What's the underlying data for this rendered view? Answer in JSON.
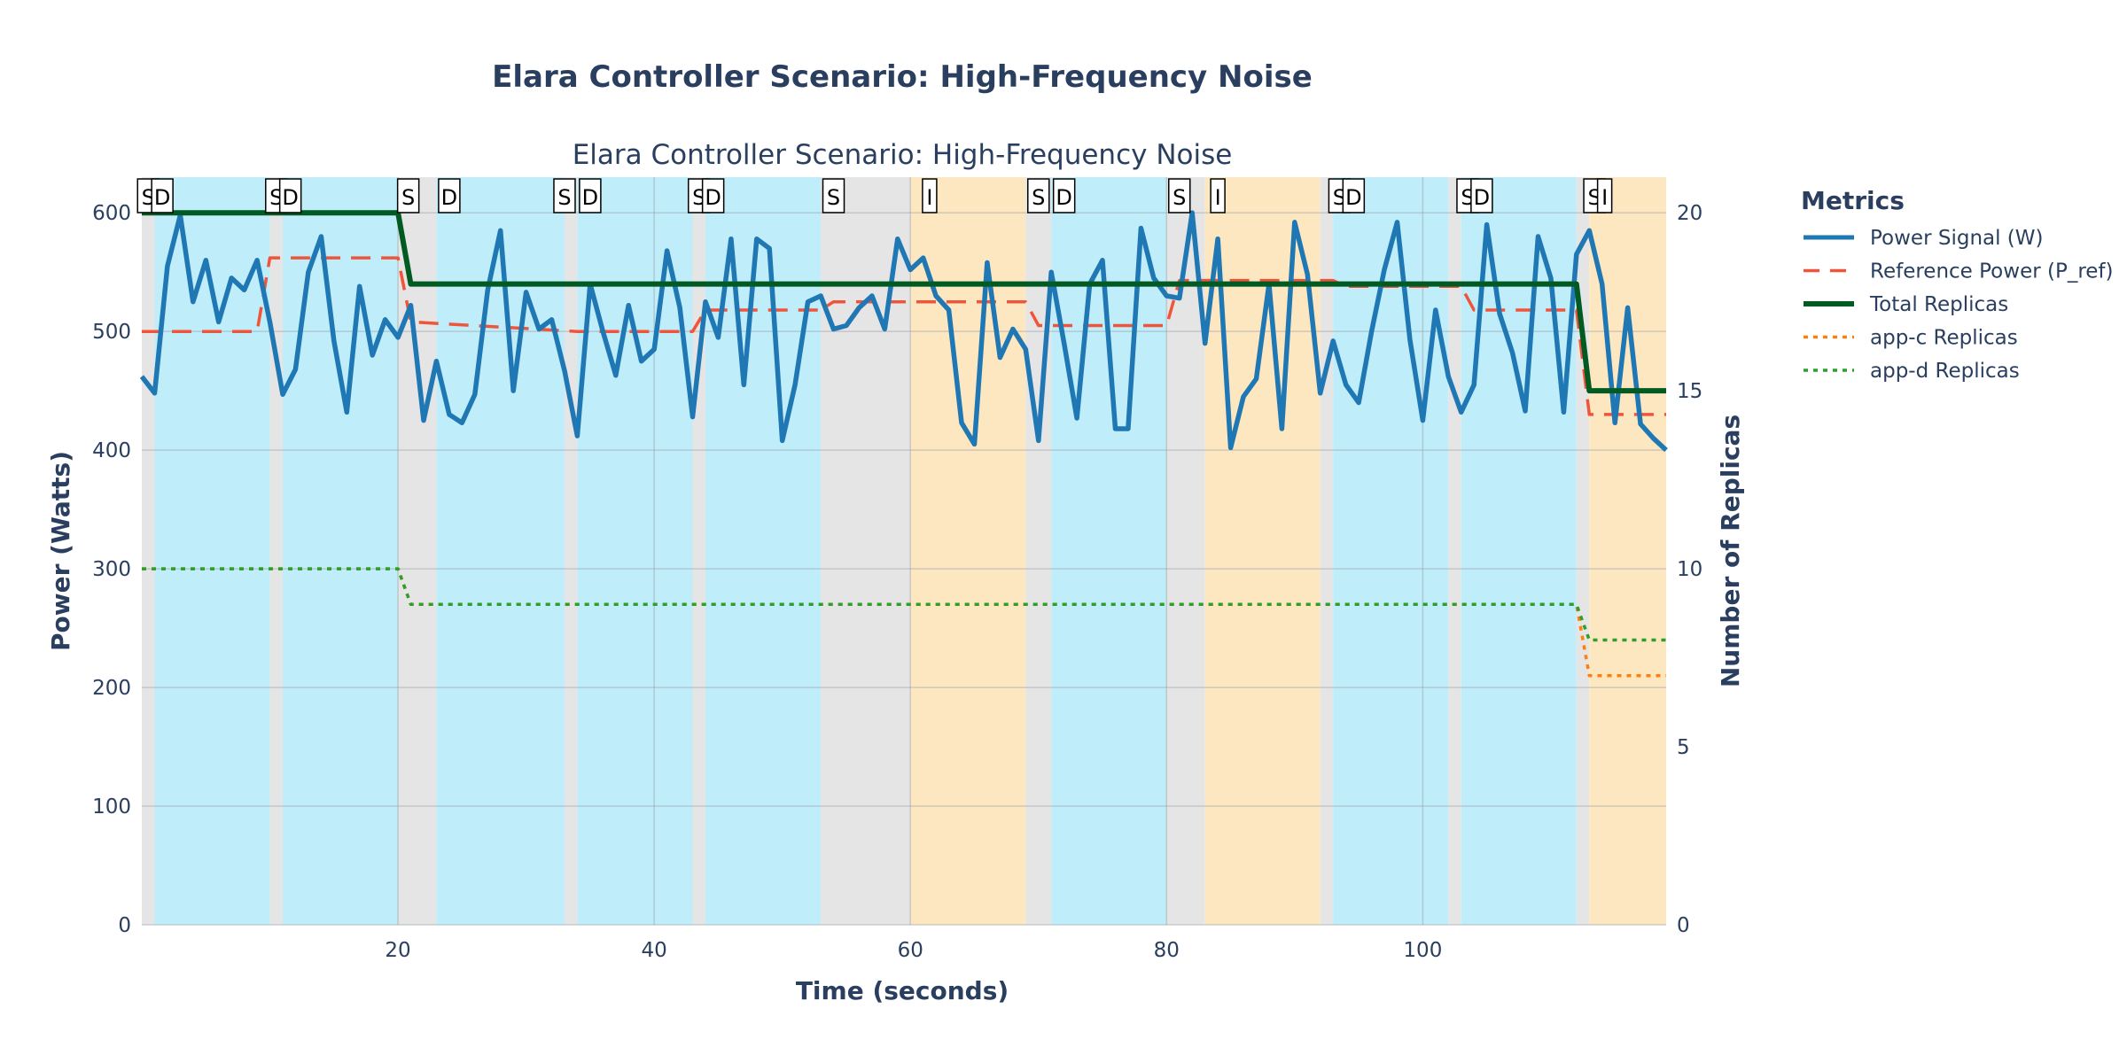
{
  "chart_data": {
    "type": "line",
    "title": "Elara Controller Scenario: High-Frequency Noise",
    "subtitle": "Elara Controller Scenario: High-Frequency Noise",
    "xlabel": "Time (seconds)",
    "ylabel": "Power (Watts)",
    "y2label": "Number of Replicas",
    "xlim": [
      0,
      119
    ],
    "ylim": [
      0,
      630
    ],
    "y2lim": [
      0,
      21
    ],
    "xticks": [
      20,
      40,
      60,
      80,
      100
    ],
    "yticks": [
      0,
      100,
      200,
      300,
      400,
      500,
      600
    ],
    "y2ticks": [
      0,
      5,
      10,
      15,
      20
    ],
    "grid": true,
    "legend": {
      "title": "Metrics",
      "placement": "right"
    },
    "series": [
      {
        "name": "Power Signal (W)",
        "axis": "y",
        "color": "#1f77b4",
        "style": "solid",
        "x": [
          0,
          1,
          2,
          3,
          4,
          5,
          6,
          7,
          8,
          9,
          10,
          11,
          12,
          13,
          14,
          15,
          16,
          17,
          18,
          19,
          20,
          21,
          22,
          23,
          24,
          25,
          26,
          27,
          28,
          29,
          30,
          31,
          32,
          33,
          34,
          35,
          36,
          37,
          38,
          39,
          40,
          41,
          42,
          43,
          44,
          45,
          46,
          47,
          48,
          49,
          50,
          51,
          52,
          53,
          54,
          55,
          56,
          57,
          58,
          59,
          60,
          61,
          62,
          63,
          64,
          65,
          66,
          67,
          68,
          69,
          70,
          71,
          72,
          73,
          74,
          75,
          76,
          77,
          78,
          79,
          80,
          81,
          82,
          83,
          84,
          85,
          86,
          87,
          88,
          89,
          90,
          91,
          92,
          93,
          94,
          95,
          96,
          97,
          98,
          99,
          100,
          101,
          102,
          103,
          104,
          105,
          106,
          107,
          108,
          109,
          110,
          111,
          112,
          113,
          114,
          115,
          116,
          117,
          118,
          119
        ],
        "values": [
          462,
          448,
          555,
          598,
          525,
          560,
          508,
          545,
          535,
          560,
          508,
          447,
          468,
          550,
          580,
          492,
          432,
          538,
          480,
          510,
          495,
          522,
          425,
          475,
          430,
          423,
          447,
          535,
          585,
          450,
          533,
          502,
          510,
          467,
          412,
          540,
          500,
          463,
          522,
          475,
          485,
          568,
          520,
          428,
          525,
          495,
          578,
          455,
          578,
          570,
          408,
          455,
          525,
          530,
          502,
          505,
          520,
          530,
          502,
          578,
          552,
          562,
          530,
          518,
          423,
          405,
          558,
          478,
          502,
          485,
          408,
          550,
          490,
          427,
          540,
          560,
          418,
          418,
          587,
          545,
          530,
          528,
          600,
          490,
          578,
          402,
          445,
          460,
          540,
          418,
          592,
          548,
          448,
          492,
          455,
          440,
          500,
          552,
          592,
          493,
          425,
          518,
          462,
          432,
          455,
          590,
          515,
          482,
          433,
          580,
          545,
          432,
          565,
          585,
          540,
          423,
          520,
          422,
          410,
          400
        ]
      },
      {
        "name": "Reference Power (P_ref)",
        "axis": "y",
        "color": "#ef553b",
        "style": "dash",
        "x": [
          0,
          9,
          10,
          20,
          21,
          34,
          43,
          44,
          53,
          54,
          68,
          69,
          70,
          80,
          81,
          93,
          94,
          103,
          104,
          112,
          113,
          119
        ],
        "values": [
          500,
          500,
          562,
          562,
          508,
          500,
          500,
          518,
          518,
          525,
          525,
          525,
          505,
          505,
          543,
          543,
          538,
          538,
          518,
          518,
          430,
          430
        ]
      },
      {
        "name": "Total Replicas",
        "axis": "y2",
        "color": "#005a22",
        "style": "solid",
        "x": [
          0,
          20,
          21,
          112,
          113,
          119
        ],
        "values": [
          20,
          20,
          18,
          18,
          15,
          15
        ]
      },
      {
        "name": "app-c Replicas",
        "axis": "y2",
        "color": "#ff7f0e",
        "style": "dot",
        "x": [
          0,
          20,
          21,
          112,
          113,
          119
        ],
        "values": [
          10,
          10,
          9,
          9,
          7,
          7
        ]
      },
      {
        "name": "app-d Replicas",
        "axis": "y2",
        "color": "#2ca02c",
        "style": "dot",
        "x": [
          0,
          20,
          21,
          112,
          113,
          119
        ],
        "values": [
          10,
          10,
          9,
          9,
          8,
          8
        ]
      }
    ],
    "shaded_regions": [
      {
        "x0": 0,
        "x1": 1,
        "color": "#e5e5e5"
      },
      {
        "x0": 1,
        "x1": 10,
        "color": "#bfedfa"
      },
      {
        "x0": 10,
        "x1": 11,
        "color": "#e5e5e5"
      },
      {
        "x0": 11,
        "x1": 20,
        "color": "#bfedfa"
      },
      {
        "x0": 20,
        "x1": 23,
        "color": "#e5e5e5"
      },
      {
        "x0": 23,
        "x1": 33,
        "color": "#bfedfa"
      },
      {
        "x0": 33,
        "x1": 34,
        "color": "#e5e5e5"
      },
      {
        "x0": 34,
        "x1": 43,
        "color": "#bfedfa"
      },
      {
        "x0": 43,
        "x1": 44,
        "color": "#e5e5e5"
      },
      {
        "x0": 44,
        "x1": 53,
        "color": "#bfedfa"
      },
      {
        "x0": 53,
        "x1": 60,
        "color": "#e5e5e5"
      },
      {
        "x0": 60,
        "x1": 69,
        "color": "#fde7c0"
      },
      {
        "x0": 69,
        "x1": 71,
        "color": "#e5e5e5"
      },
      {
        "x0": 71,
        "x1": 80,
        "color": "#bfedfa"
      },
      {
        "x0": 80,
        "x1": 83,
        "color": "#e5e5e5"
      },
      {
        "x0": 83,
        "x1": 92,
        "color": "#fde7c0"
      },
      {
        "x0": 92,
        "x1": 93,
        "color": "#e5e5e5"
      },
      {
        "x0": 93,
        "x1": 102,
        "color": "#bfedfa"
      },
      {
        "x0": 102,
        "x1": 103,
        "color": "#e5e5e5"
      },
      {
        "x0": 103,
        "x1": 112,
        "color": "#bfedfa"
      },
      {
        "x0": 112,
        "x1": 113,
        "color": "#e5e5e5"
      },
      {
        "x0": 113,
        "x1": 119,
        "color": "#fde7c0"
      }
    ],
    "annotations": [
      {
        "x": 0.5,
        "text": "S"
      },
      {
        "x": 1.6,
        "text": "D"
      },
      {
        "x": 10.5,
        "text": "S"
      },
      {
        "x": 11.6,
        "text": "D"
      },
      {
        "x": 20.8,
        "text": "S"
      },
      {
        "x": 24,
        "text": "D"
      },
      {
        "x": 33,
        "text": "S"
      },
      {
        "x": 35,
        "text": "D"
      },
      {
        "x": 43.5,
        "text": "S"
      },
      {
        "x": 44.6,
        "text": "D"
      },
      {
        "x": 54,
        "text": "S"
      },
      {
        "x": 61.5,
        "text": "I"
      },
      {
        "x": 70,
        "text": "S"
      },
      {
        "x": 72,
        "text": "D"
      },
      {
        "x": 81,
        "text": "S"
      },
      {
        "x": 84,
        "text": "I"
      },
      {
        "x": 93.5,
        "text": "S"
      },
      {
        "x": 94.6,
        "text": "D"
      },
      {
        "x": 103.5,
        "text": "S"
      },
      {
        "x": 104.6,
        "text": "D"
      },
      {
        "x": 113.4,
        "text": "S"
      },
      {
        "x": 114.2,
        "text": "I"
      }
    ]
  }
}
